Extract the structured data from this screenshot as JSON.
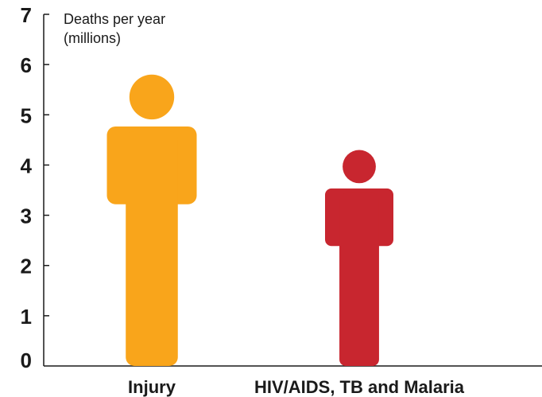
{
  "chart_data": {
    "type": "bar",
    "ylabel_lines": [
      "Deaths per year",
      "(millions)"
    ],
    "categories": [
      "Injury",
      "HIV/AIDS, TB and Malaria"
    ],
    "values": [
      5.8,
      4.3
    ],
    "colors": [
      "#f9a51b",
      "#c8262f"
    ],
    "ylim": [
      0,
      7
    ],
    "yticks": [
      "0",
      "1",
      "2",
      "3",
      "4",
      "5",
      "6",
      "7"
    ],
    "grid": false,
    "mark_shape": "person-icon"
  }
}
